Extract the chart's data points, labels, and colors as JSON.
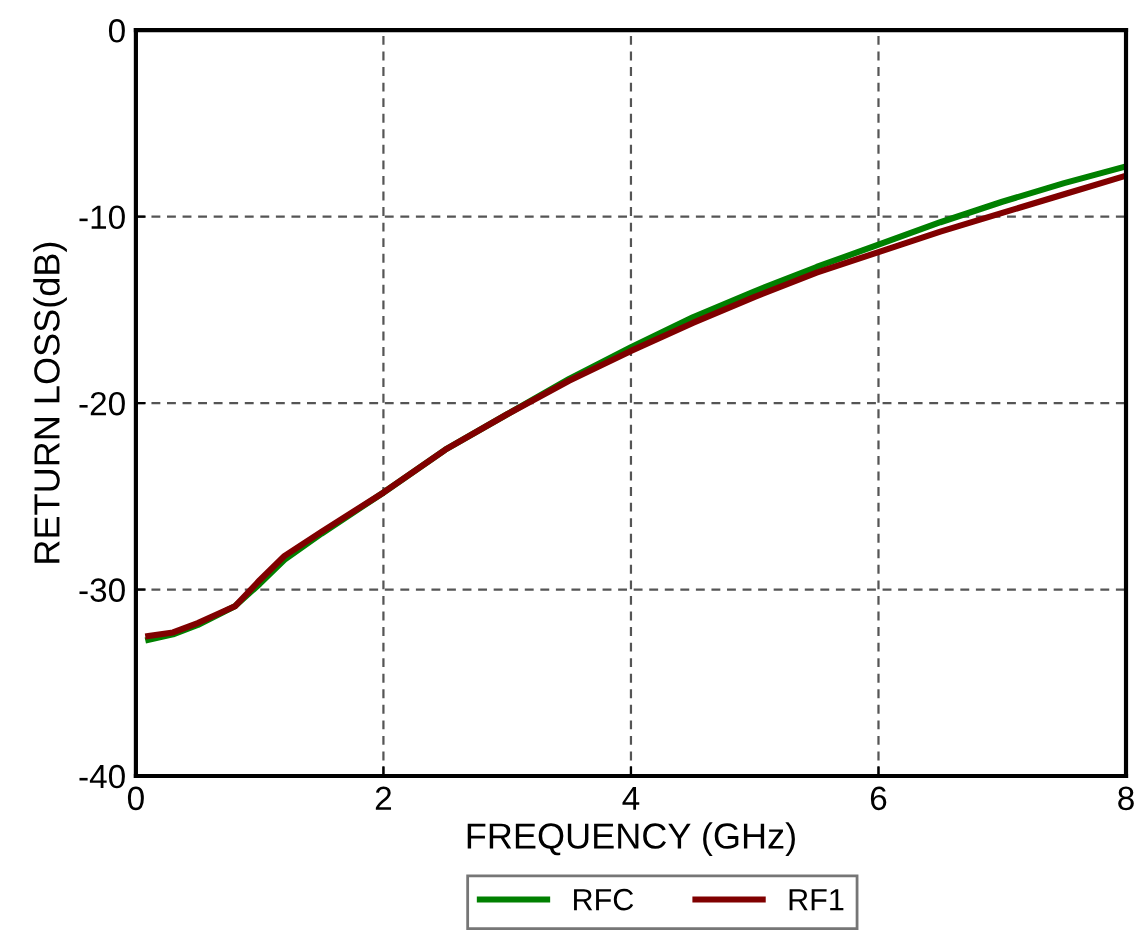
{
  "chart_data": {
    "type": "line",
    "xlabel": "FREQUENCY (GHz)",
    "ylabel": "RETURN LOSS(dB)",
    "x": [
      0.1,
      0.3,
      0.5,
      0.8,
      1.0,
      1.2,
      1.5,
      2.0,
      2.5,
      3.0,
      3.5,
      4.0,
      4.5,
      5.0,
      5.5,
      6.0,
      6.5,
      7.0,
      7.5,
      8.0
    ],
    "series": [
      {
        "name": "RFC",
        "color": "#008000",
        "values": [
          -32.7,
          -32.4,
          -31.9,
          -30.9,
          -29.7,
          -28.4,
          -27.0,
          -24.8,
          -22.5,
          -20.6,
          -18.7,
          -17.0,
          -15.4,
          -14.0,
          -12.7,
          -11.5,
          -10.3,
          -9.2,
          -8.2,
          -7.3
        ]
      },
      {
        "name": "RF1",
        "color": "#800000",
        "values": [
          -32.5,
          -32.3,
          -31.8,
          -30.9,
          -29.5,
          -28.2,
          -26.9,
          -24.8,
          -22.5,
          -20.6,
          -18.8,
          -17.2,
          -15.7,
          -14.3,
          -13.0,
          -11.9,
          -10.8,
          -9.8,
          -8.8,
          -7.8
        ]
      }
    ],
    "xlim": [
      0,
      8
    ],
    "xticks": [
      0,
      2,
      4,
      6,
      8
    ],
    "ylim": [
      -40,
      0
    ],
    "yticks": [
      -40,
      -30,
      -20,
      -10,
      0
    ],
    "grid": true,
    "legend": "bottom",
    "line_style": "solid",
    "marker": "none"
  }
}
